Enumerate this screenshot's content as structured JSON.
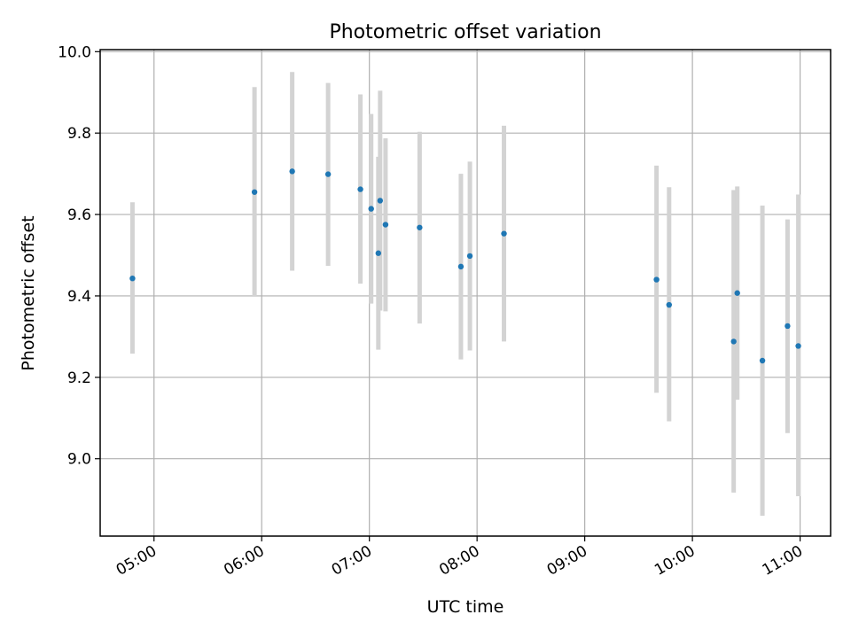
{
  "chart_data": {
    "type": "scatter",
    "title": "Photometric offset variation",
    "xlabel": "UTC time",
    "ylabel": "Photometric offset",
    "x_ticks": [
      "05:00",
      "06:00",
      "07:00",
      "08:00",
      "09:00",
      "10:00",
      "11:00"
    ],
    "y_ticks": [
      "9.0",
      "9.2",
      "9.4",
      "9.6",
      "9.8",
      "10.0"
    ],
    "xlim": [
      "04:30",
      "11:17"
    ],
    "ylim": [
      8.81,
      10.005
    ],
    "grid": true,
    "colors": {
      "marker": "#1f77b4",
      "errorbar": "#d3d3d3",
      "grid": "#b0b0b0"
    },
    "series": [
      {
        "points": [
          {
            "x": "04:48",
            "y": 9.443,
            "err_low": 9.258,
            "err_high": 9.63
          },
          {
            "x": "05:56",
            "y": 9.655,
            "err_low": 9.4,
            "err_high": 9.913
          },
          {
            "x": "06:17",
            "y": 9.706,
            "err_low": 9.462,
            "err_high": 9.95
          },
          {
            "x": "06:37",
            "y": 9.699,
            "err_low": 9.474,
            "err_high": 9.923
          },
          {
            "x": "06:55",
            "y": 9.662,
            "err_low": 9.43,
            "err_high": 9.895
          },
          {
            "x": "07:01",
            "y": 9.614,
            "err_low": 9.381,
            "err_high": 9.847
          },
          {
            "x": "07:05",
            "y": 9.505,
            "err_low": 9.268,
            "err_high": 9.742
          },
          {
            "x": "07:06",
            "y": 9.634,
            "err_low": 9.364,
            "err_high": 9.904
          },
          {
            "x": "07:09",
            "y": 9.575,
            "err_low": 9.362,
            "err_high": 9.787
          },
          {
            "x": "07:28",
            "y": 9.568,
            "err_low": 9.332,
            "err_high": 9.803
          },
          {
            "x": "07:51",
            "y": 9.472,
            "err_low": 9.244,
            "err_high": 9.7
          },
          {
            "x": "07:56",
            "y": 9.498,
            "err_low": 9.266,
            "err_high": 9.73
          },
          {
            "x": "08:15",
            "y": 9.553,
            "err_low": 9.288,
            "err_high": 9.818
          },
          {
            "x": "09:40",
            "y": 9.44,
            "err_low": 9.162,
            "err_high": 9.72
          },
          {
            "x": "09:47",
            "y": 9.378,
            "err_low": 9.092,
            "err_high": 9.667
          },
          {
            "x": "10:23",
            "y": 9.288,
            "err_low": 8.917,
            "err_high": 9.66
          },
          {
            "x": "10:25",
            "y": 9.407,
            "err_low": 9.145,
            "err_high": 9.669
          },
          {
            "x": "10:39",
            "y": 9.241,
            "err_low": 8.86,
            "err_high": 9.622
          },
          {
            "x": "10:53",
            "y": 9.326,
            "err_low": 9.063,
            "err_high": 9.588
          },
          {
            "x": "10:59",
            "y": 9.277,
            "err_low": 8.908,
            "err_high": 9.649
          }
        ]
      }
    ]
  }
}
